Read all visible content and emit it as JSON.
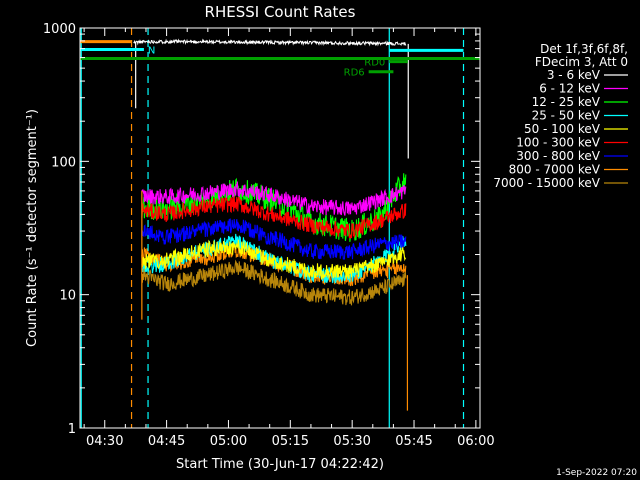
{
  "chart_data": {
    "type": "line",
    "title": "RHESSI Count Rates",
    "xlabel": "Start Time (30-Jun-17 04:22:42)",
    "ylabel": "Count Rate (s⁻¹ detector segment⁻¹)",
    "yscale": "log",
    "ylim": [
      1,
      1000
    ],
    "xlim_minutes": [
      264,
      361
    ],
    "x_ticks": [
      {
        "t": 270,
        "label": "04:30"
      },
      {
        "t": 285,
        "label": "04:45"
      },
      {
        "t": 300,
        "label": "05:00"
      },
      {
        "t": 315,
        "label": "05:15"
      },
      {
        "t": 330,
        "label": "05:30"
      },
      {
        "t": 345,
        "label": "05:45"
      },
      {
        "t": 360,
        "label": "06:00"
      }
    ],
    "y_ticks": [
      {
        "v": 1,
        "label": "1"
      },
      {
        "v": 10,
        "label": "10"
      },
      {
        "v": 100,
        "label": "100"
      },
      {
        "v": 1000,
        "label": "1000"
      }
    ],
    "legend_header": [
      "Det 1f,3f,6f,8f,",
      "FDecim 3, Att 0"
    ],
    "series": [
      {
        "name": "3 - 6 keV",
        "color": "#000000",
        "x": [
          277,
          280,
          290,
          300,
          310,
          320,
          330,
          340,
          343
        ],
        "y": [
          780,
          790,
          790,
          785,
          780,
          775,
          770,
          765,
          760
        ]
      },
      {
        "name": "6 - 12 keV",
        "color": "#ff00ff",
        "x": [
          279,
          285,
          295,
          302,
          310,
          320,
          330,
          337,
          343
        ],
        "y": [
          55,
          54,
          58,
          62,
          56,
          46,
          44,
          52,
          60
        ]
      },
      {
        "name": "12 - 25 keV",
        "color": "#00ff00",
        "x": [
          279,
          285,
          295,
          302,
          310,
          320,
          330,
          337,
          343
        ],
        "y": [
          45,
          44,
          52,
          62,
          52,
          35,
          30,
          38,
          72
        ]
      },
      {
        "name": "25 - 50 keV",
        "color": "#00ffff",
        "x": [
          279,
          285,
          295,
          302,
          310,
          320,
          330,
          337,
          343
        ],
        "y": [
          16,
          17,
          22,
          25,
          18,
          14,
          14,
          18,
          26
        ]
      },
      {
        "name": "50 - 100 keV",
        "color": "#ffff00",
        "x": [
          279,
          285,
          295,
          302,
          310,
          320,
          330,
          337,
          343
        ],
        "y": [
          18,
          18,
          22,
          23,
          18,
          15,
          15,
          17,
          21
        ]
      },
      {
        "name": "100 - 300 keV",
        "color": "#ff0000",
        "x": [
          279,
          285,
          295,
          302,
          310,
          320,
          330,
          337,
          343
        ],
        "y": [
          43,
          40,
          46,
          48,
          40,
          33,
          30,
          36,
          43
        ]
      },
      {
        "name": "300 - 800 keV",
        "color": "#0000ff",
        "x": [
          279,
          285,
          295,
          302,
          310,
          320,
          330,
          337,
          343
        ],
        "y": [
          30,
          27,
          31,
          33,
          27,
          21,
          21,
          24,
          25
        ]
      },
      {
        "name": "800 - 7000 keV",
        "color": "#ff8c00",
        "x": [
          279,
          285,
          295,
          302,
          310,
          320,
          330,
          337,
          343
        ],
        "y": [
          20,
          17,
          19,
          22,
          18,
          14,
          13,
          15,
          16
        ]
      },
      {
        "name": "7000 - 15000 keV",
        "color": "#b8860b",
        "x": [
          279,
          285,
          295,
          302,
          310,
          320,
          330,
          337,
          343
        ],
        "y": [
          14,
          12,
          14,
          16,
          13,
          10,
          9.5,
          11,
          13
        ]
      }
    ],
    "annotations": [
      {
        "label": "N",
        "color": "#00ffff",
        "x_start": 264,
        "x_end": 279.5,
        "y": 690
      },
      {
        "label": "RD0",
        "color": "#00a000",
        "x_start": 339,
        "x_end": 343.5,
        "y": 560
      },
      {
        "label": "RD6",
        "color": "#00a000",
        "x_start": 334,
        "x_end": 340,
        "y": 470
      }
    ],
    "bars": [
      {
        "color": "#ff8c00",
        "x_start": 264,
        "x_end": 276.5,
        "y": 790
      },
      {
        "color": "#00ffff",
        "x_start": 339,
        "x_end": 357,
        "y": 680
      },
      {
        "color": "#00a000",
        "x_start": 264,
        "x_end": 361,
        "y": 590
      }
    ],
    "vlines": [
      {
        "t": 264.3,
        "color": "#00ffff",
        "style": "solid"
      },
      {
        "t": 276.5,
        "color": "#ff8c00",
        "style": "dashed"
      },
      {
        "t": 280.5,
        "color": "#00ffff",
        "style": "dashed"
      },
      {
        "t": 339,
        "color": "#00ffff",
        "style": "solid"
      },
      {
        "t": 357,
        "color": "#00ffff",
        "style": "dashed"
      }
    ]
  },
  "footer_timestamp": "1-Sep-2022 07:20"
}
